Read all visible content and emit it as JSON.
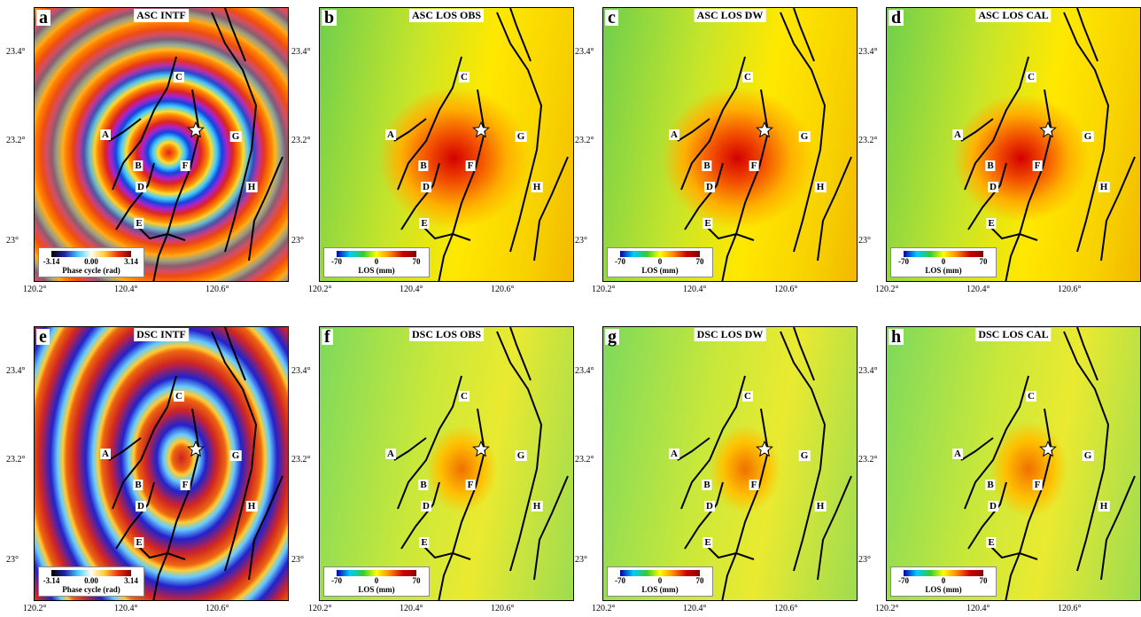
{
  "panels": [
    {
      "letter": "a",
      "title": "ASC INTF",
      "colorbar": {
        "ticks": [
          "-3.14",
          "0.00",
          "3.14"
        ],
        "label": "Phase cycle (rad)"
      }
    },
    {
      "letter": "b",
      "title": "ASC LOS OBS",
      "colorbar": {
        "ticks": [
          "-70",
          "0",
          "70"
        ],
        "label": "LOS (mm)"
      }
    },
    {
      "letter": "c",
      "title": "ASC LOS DW",
      "colorbar": {
        "ticks": [
          "-70",
          "0",
          "70"
        ],
        "label": "LOS (mm)"
      }
    },
    {
      "letter": "d",
      "title": "ASC LOS CAL",
      "colorbar": {
        "ticks": [
          "-70",
          "0",
          "70"
        ],
        "label": "LOS (mm)"
      }
    },
    {
      "letter": "e",
      "title": "DSC INTF",
      "colorbar": {
        "ticks": [
          "-3.14",
          "0.00",
          "3.14"
        ],
        "label": "Phase cycle (rad)"
      }
    },
    {
      "letter": "f",
      "title": "DSC LOS OBS",
      "colorbar": {
        "ticks": [
          "-70",
          "0",
          "70"
        ],
        "label": "LOS (mm)"
      }
    },
    {
      "letter": "g",
      "title": "DSC LOS DW",
      "colorbar": {
        "ticks": [
          "-70",
          "0",
          "70"
        ],
        "label": "LOS (mm)"
      }
    },
    {
      "letter": "h",
      "title": "DSC LOS CAL",
      "colorbar": {
        "ticks": [
          "-70",
          "0",
          "70"
        ],
        "label": "LOS (mm)"
      }
    }
  ],
  "x_axis_ticks": [
    "120.2°",
    "120.4°",
    "120.6°"
  ],
  "y_axis_ticks": [
    "23.4°",
    "23.2°",
    "23°"
  ],
  "fault_labels": [
    "A",
    "B",
    "C",
    "D",
    "E",
    "F",
    "G",
    "H"
  ]
}
